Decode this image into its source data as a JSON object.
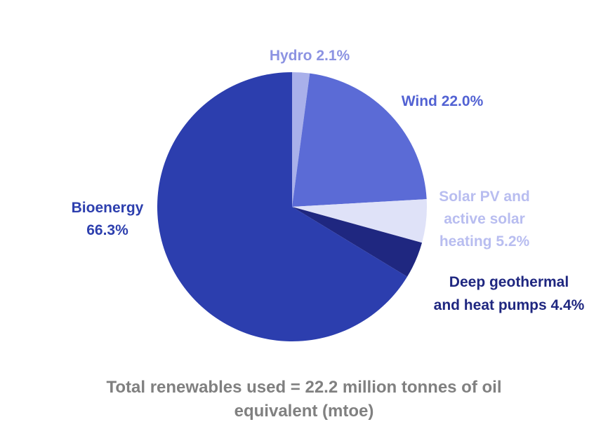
{
  "chart_data": {
    "type": "pie",
    "start_angle_deg": 0,
    "direction": "clockwise",
    "slices": [
      {
        "label": "Hydro 2.1%",
        "value": 2.1,
        "color": "#a9b0ea",
        "label_color": "#8c93e2"
      },
      {
        "label": "Wind 22.0%",
        "value": 22.0,
        "color": "#5b6bd6",
        "label_color": "#5262d3"
      },
      {
        "label": "Solar PV and active solar heating 5.2%",
        "value": 5.2,
        "color": "#dfe2f8",
        "label_color": "#b8bdf0"
      },
      {
        "label": "Deep geothermal and heat pumps 4.4%",
        "value": 4.4,
        "color": "#1f2780",
        "label_color": "#1f2780"
      },
      {
        "label": "Bioenergy 66.3%",
        "value": 66.3,
        "color": "#2c3eae",
        "label_color": "#2d3fae"
      }
    ],
    "labels": {
      "hydro": [
        "Hydro 2.1%"
      ],
      "wind": [
        "Wind 22.0%"
      ],
      "solar": [
        "Solar PV and",
        "active solar",
        "heating 5.2%"
      ],
      "geothermal": [
        "Deep geothermal",
        "and heat pumps 4.4%"
      ],
      "bioenergy": [
        "Bioenergy",
        "66.3%"
      ]
    }
  },
  "caption": {
    "line1": "Total renewables used = 22.2 million tonnes of oil",
    "line2": "equivalent (mtoe)"
  }
}
